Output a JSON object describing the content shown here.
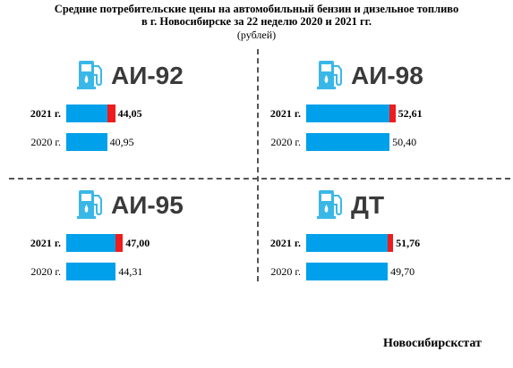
{
  "title_line1": "Средние потребительские цены на автомобильный бензин и дизельное топливо",
  "title_line2": "в г. Новосибирске за 22 неделю 2020 и 2021 гг.",
  "unit": "(рублей)",
  "source": "Новосибирскстат",
  "colors": {
    "bar_2020": "#00a0ea",
    "bar_2021": "#00a0ea",
    "increase": "#ee1c1c",
    "pump_icon": "#39b8e8"
  },
  "chart_data": {
    "type": "bar",
    "orientation": "horizontal",
    "categories": [
      "АИ-92",
      "АИ-98",
      "АИ-95",
      "ДТ"
    ],
    "year_labels": [
      "2021 г.",
      "2020 г."
    ],
    "series": [
      {
        "name": "2021 г.",
        "values": [
          44.05,
          52.61,
          47.0,
          51.76
        ],
        "labels": [
          "44,05",
          "52,61",
          "47,00",
          "51,76"
        ]
      },
      {
        "name": "2020 г.",
        "values": [
          40.95,
          50.4,
          44.31,
          49.7
        ],
        "labels": [
          "40,95",
          "50,40",
          "44,31",
          "49,70"
        ]
      }
    ]
  }
}
